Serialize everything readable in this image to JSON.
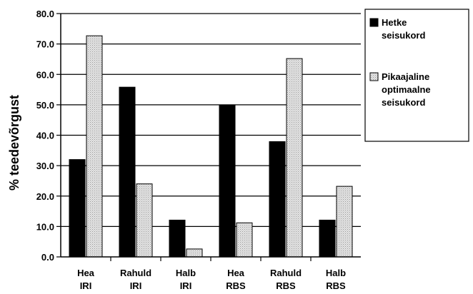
{
  "chart_data": {
    "type": "bar",
    "categories": [
      [
        "Hea",
        "IRI"
      ],
      [
        "Rahuld",
        "IRI"
      ],
      [
        "Halb",
        "IRI"
      ],
      [
        "Hea",
        "RBS"
      ],
      [
        "Rahuld",
        "RBS"
      ],
      [
        "Halb",
        "RBS"
      ]
    ],
    "series": [
      {
        "name": "Hetke seisukord",
        "label_lines": [
          "Hetke",
          "seisukord"
        ],
        "color": "#000000",
        "pattern": "solid",
        "values": [
          32.0,
          55.8,
          12.1,
          49.9,
          37.9,
          12.1
        ]
      },
      {
        "name": "Pikaajaline optimaalne seisukord",
        "label_lines": [
          "Pikaajaline",
          "optimaalne",
          "seisukord"
        ],
        "color": "#d8d8d8",
        "pattern": "dotted",
        "values": [
          72.7,
          24.0,
          2.6,
          11.2,
          65.2,
          23.2
        ]
      }
    ],
    "title": "",
    "xlabel": "",
    "ylabel": "% teedevõrgust",
    "ylim": [
      0,
      80
    ],
    "yticks": [
      "0.0",
      "10.0",
      "20.0",
      "30.0",
      "40.0",
      "50.0",
      "60.0",
      "70.0",
      "80.0"
    ],
    "grid": true,
    "legend_position": "right"
  }
}
